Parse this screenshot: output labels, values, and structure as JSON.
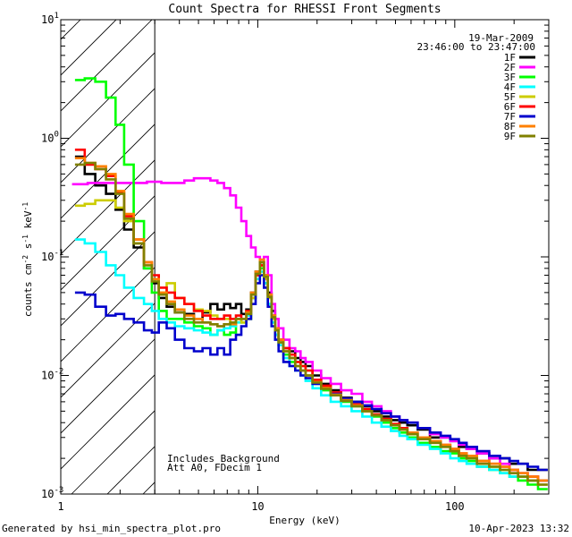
{
  "chart_data": {
    "type": "line",
    "title": "Count Spectra for RHESSI Front Segments",
    "xlabel": "Energy (keV)",
    "ylabel_parts": [
      "counts cm",
      "-2",
      " s",
      "-1",
      " keV",
      "-1"
    ],
    "xscale": "log",
    "yscale": "log",
    "xlim": [
      1,
      300
    ],
    "ylim": [
      0.001,
      10
    ],
    "x_ticks": [
      {
        "value": 1,
        "label": "1"
      },
      {
        "value": 10,
        "label": "10"
      },
      {
        "value": 100,
        "label": "100"
      }
    ],
    "y_ticks": [
      {
        "value": 0.001,
        "mant": "10",
        "exp": "-3"
      },
      {
        "value": 0.01,
        "mant": "10",
        "exp": "-2"
      },
      {
        "value": 0.1,
        "mant": "10",
        "exp": "-1"
      },
      {
        "value": 1,
        "mant": "10",
        "exp": "0"
      },
      {
        "value": 10,
        "mant": "10",
        "exp": "1"
      }
    ],
    "excluded_region": {
      "x_range": [
        1,
        3
      ],
      "style": "hatched"
    },
    "info": {
      "date": "19-Mar-2009",
      "time_range": "23:46:00 to 23:47:00"
    },
    "annotations": [
      "Includes Background",
      "Att A0, FDecim 1"
    ],
    "legend": {
      "placement": "top-right"
    },
    "series": [
      {
        "name": "1F",
        "color": "#000000",
        "x": [
          1.25,
          1.4,
          1.6,
          1.8,
          2.0,
          2.2,
          2.5,
          2.8,
          3.0,
          3.3,
          3.6,
          4.0,
          4.5,
          5.0,
          5.5,
          6.0,
          6.5,
          7.0,
          7.5,
          8.0,
          8.5,
          9.0,
          9.5,
          10.0,
          10.5,
          11.0,
          11.5,
          12.0,
          12.5,
          13,
          14,
          15,
          16,
          17,
          18,
          20,
          22,
          25,
          28,
          32,
          36,
          40,
          45,
          50,
          55,
          60,
          70,
          80,
          90,
          100,
          110,
          120,
          140,
          160,
          180,
          200,
          220,
          250,
          280
        ],
        "y": [
          0.7,
          0.5,
          0.4,
          0.34,
          0.25,
          0.17,
          0.12,
          0.08,
          0.06,
          0.045,
          0.038,
          0.034,
          0.033,
          0.03,
          0.034,
          0.04,
          0.036,
          0.04,
          0.037,
          0.04,
          0.033,
          0.036,
          0.05,
          0.075,
          0.09,
          0.07,
          0.05,
          0.035,
          0.025,
          0.02,
          0.017,
          0.016,
          0.014,
          0.013,
          0.012,
          0.01,
          0.0085,
          0.0075,
          0.0065,
          0.006,
          0.0055,
          0.005,
          0.0045,
          0.0042,
          0.004,
          0.0038,
          0.0035,
          0.003,
          0.003,
          0.0028,
          0.0025,
          0.0024,
          0.0022,
          0.002,
          0.002,
          0.0018,
          0.0018,
          0.0016,
          0.0016
        ]
      },
      {
        "name": "2F",
        "color": "#ff00ff",
        "x": [
          1.25,
          1.5,
          2,
          2.5,
          3,
          3.5,
          4,
          4.5,
          5,
          5.5,
          6,
          6.5,
          7,
          7.5,
          8,
          8.5,
          9,
          9.5,
          10,
          10.5,
          11,
          11.5,
          12,
          12.5,
          13,
          14,
          15,
          16,
          17,
          18,
          20,
          22,
          25,
          28,
          32,
          36,
          40,
          45,
          50,
          55,
          60,
          70,
          80,
          90,
          100,
          110,
          120,
          140,
          160,
          180,
          200,
          220,
          250,
          280
        ],
        "y": [
          0.41,
          0.42,
          0.42,
          0.42,
          0.43,
          0.42,
          0.42,
          0.44,
          0.46,
          0.46,
          0.44,
          0.42,
          0.38,
          0.33,
          0.26,
          0.2,
          0.15,
          0.12,
          0.1,
          0.085,
          0.1,
          0.07,
          0.04,
          0.03,
          0.025,
          0.02,
          0.017,
          0.016,
          0.014,
          0.013,
          0.011,
          0.0095,
          0.0085,
          0.0075,
          0.007,
          0.006,
          0.0055,
          0.005,
          0.0045,
          0.0042,
          0.004,
          0.0036,
          0.0032,
          0.003,
          0.0028,
          0.0026,
          0.0024,
          0.0022,
          0.002,
          0.0018,
          0.0016,
          0.0015,
          0.0014,
          0.0013
        ]
      },
      {
        "name": "3F",
        "color": "#00ff00",
        "x": [
          1.25,
          1.4,
          1.6,
          1.8,
          2.0,
          2.2,
          2.5,
          2.8,
          3.0,
          3.3,
          3.6,
          4.0,
          4.5,
          5.0,
          5.5,
          6.0,
          6.5,
          7.0,
          7.5,
          8.0,
          8.5,
          9.0,
          9.5,
          10.0,
          10.5,
          11.0,
          11.5,
          12.0,
          12.5,
          13,
          14,
          15,
          16,
          17,
          18,
          20,
          22,
          25,
          28,
          32,
          36,
          40,
          45,
          50,
          55,
          60,
          70,
          80,
          90,
          100,
          110,
          120,
          140,
          160,
          180,
          200,
          220,
          250,
          280
        ],
        "y": [
          3.1,
          3.2,
          3.0,
          2.2,
          1.3,
          0.6,
          0.2,
          0.08,
          0.05,
          0.035,
          0.03,
          0.03,
          0.028,
          0.026,
          0.025,
          0.022,
          0.024,
          0.022,
          0.023,
          0.03,
          0.028,
          0.03,
          0.045,
          0.07,
          0.08,
          0.06,
          0.04,
          0.028,
          0.022,
          0.018,
          0.015,
          0.013,
          0.012,
          0.011,
          0.01,
          0.0085,
          0.0075,
          0.0068,
          0.006,
          0.0055,
          0.005,
          0.0045,
          0.004,
          0.0036,
          0.0033,
          0.003,
          0.0027,
          0.0025,
          0.0023,
          0.0022,
          0.002,
          0.0019,
          0.0017,
          0.0016,
          0.0015,
          0.0014,
          0.0013,
          0.0012,
          0.0011
        ]
      },
      {
        "name": "4F",
        "color": "#00ffff",
        "x": [
          1.25,
          1.4,
          1.6,
          1.8,
          2.0,
          2.2,
          2.5,
          2.8,
          3.0,
          3.3,
          3.6,
          4.0,
          4.5,
          5.0,
          5.5,
          6.0,
          6.5,
          7.0,
          7.5,
          8.0,
          8.5,
          9.0,
          9.5,
          10.0,
          10.5,
          11.0,
          11.5,
          12.0,
          12.5,
          13,
          14,
          15,
          16,
          17,
          18,
          20,
          22,
          25,
          28,
          32,
          36,
          40,
          45,
          50,
          55,
          60,
          70,
          80,
          90,
          100,
          110,
          120,
          140,
          160,
          180,
          200,
          220,
          250,
          280
        ],
        "y": [
          0.14,
          0.13,
          0.11,
          0.085,
          0.07,
          0.055,
          0.045,
          0.04,
          0.035,
          0.03,
          0.028,
          0.026,
          0.025,
          0.024,
          0.023,
          0.022,
          0.024,
          0.025,
          0.026,
          0.028,
          0.03,
          0.032,
          0.045,
          0.065,
          0.075,
          0.06,
          0.04,
          0.028,
          0.022,
          0.018,
          0.014,
          0.012,
          0.011,
          0.01,
          0.009,
          0.0078,
          0.0068,
          0.006,
          0.0055,
          0.005,
          0.0045,
          0.004,
          0.0037,
          0.0034,
          0.0031,
          0.0029,
          0.0026,
          0.0024,
          0.0022,
          0.002,
          0.0019,
          0.0018,
          0.0017,
          0.0016,
          0.0015,
          0.0014,
          0.0014,
          0.0013,
          0.0013
        ]
      },
      {
        "name": "5F",
        "color": "#cccc00",
        "x": [
          1.25,
          1.4,
          1.6,
          1.8,
          2.0,
          2.2,
          2.5,
          2.8,
          3.0,
          3.3,
          3.6,
          4.0,
          4.5,
          5.0,
          5.5,
          6.0,
          6.5,
          7.0,
          7.5,
          8.0,
          8.5,
          9.0,
          9.5,
          10.0,
          10.5,
          11.0,
          11.5,
          12.0,
          12.5,
          13,
          14,
          15,
          16,
          17,
          18,
          20,
          22,
          25,
          28,
          32,
          36,
          40,
          45,
          50,
          55,
          60,
          70,
          80,
          90,
          100,
          110,
          120,
          140,
          160,
          180,
          200,
          220,
          250,
          280
        ],
        "y": [
          0.27,
          0.28,
          0.3,
          0.3,
          0.26,
          0.2,
          0.13,
          0.09,
          0.065,
          0.05,
          0.06,
          0.045,
          0.04,
          0.036,
          0.035,
          0.032,
          0.03,
          0.03,
          0.028,
          0.03,
          0.028,
          0.03,
          0.045,
          0.07,
          0.085,
          0.065,
          0.045,
          0.03,
          0.024,
          0.019,
          0.016,
          0.014,
          0.013,
          0.012,
          0.011,
          0.009,
          0.008,
          0.007,
          0.0062,
          0.0056,
          0.005,
          0.0046,
          0.0042,
          0.0038,
          0.0035,
          0.0032,
          0.0029,
          0.0027,
          0.0025,
          0.0023,
          0.0021,
          0.002,
          0.0018,
          0.0017,
          0.0016,
          0.0015,
          0.0014,
          0.0013,
          0.0012
        ]
      },
      {
        "name": "6F",
        "color": "#ff0000",
        "x": [
          1.25,
          1.4,
          1.6,
          1.8,
          2.0,
          2.2,
          2.5,
          2.8,
          3.0,
          3.3,
          3.6,
          4.0,
          4.5,
          5.0,
          5.5,
          6.0,
          6.5,
          7.0,
          7.5,
          8.0,
          8.5,
          9.0,
          9.5,
          10.0,
          10.5,
          11.0,
          11.5,
          12.0,
          12.5,
          13,
          14,
          15,
          16,
          17,
          18,
          20,
          22,
          25,
          28,
          32,
          36,
          40,
          45,
          50,
          55,
          60,
          70,
          80,
          90,
          100,
          110,
          120,
          140,
          160,
          180,
          200,
          220,
          250,
          280
        ],
        "y": [
          0.8,
          0.6,
          0.55,
          0.48,
          0.35,
          0.22,
          0.14,
          0.09,
          0.07,
          0.055,
          0.05,
          0.045,
          0.04,
          0.035,
          0.032,
          0.03,
          0.03,
          0.032,
          0.03,
          0.032,
          0.03,
          0.035,
          0.048,
          0.07,
          0.085,
          0.068,
          0.048,
          0.032,
          0.025,
          0.02,
          0.017,
          0.015,
          0.013,
          0.012,
          0.011,
          0.0092,
          0.0082,
          0.0072,
          0.0064,
          0.0057,
          0.0052,
          0.0047,
          0.0043,
          0.0039,
          0.0036,
          0.0033,
          0.003,
          0.0028,
          0.0026,
          0.0024,
          0.0022,
          0.0021,
          0.0019,
          0.0018,
          0.0017,
          0.0016,
          0.0015,
          0.0014,
          0.0013
        ]
      },
      {
        "name": "7F",
        "color": "#0000cc",
        "x": [
          1.25,
          1.4,
          1.6,
          1.8,
          2.0,
          2.2,
          2.5,
          2.8,
          3.0,
          3.3,
          3.6,
          4.0,
          4.5,
          5.0,
          5.5,
          6.0,
          6.5,
          7.0,
          7.5,
          8.0,
          8.5,
          9.0,
          9.5,
          10.0,
          10.5,
          11.0,
          11.5,
          12.0,
          12.5,
          13,
          14,
          15,
          16,
          17,
          18,
          20,
          22,
          25,
          28,
          32,
          36,
          40,
          45,
          50,
          55,
          60,
          70,
          80,
          90,
          100,
          110,
          120,
          140,
          160,
          180,
          200,
          220,
          250,
          280
        ],
        "y": [
          0.05,
          0.048,
          0.038,
          0.032,
          0.033,
          0.03,
          0.028,
          0.024,
          0.023,
          0.028,
          0.025,
          0.02,
          0.017,
          0.016,
          0.017,
          0.015,
          0.017,
          0.015,
          0.02,
          0.022,
          0.026,
          0.03,
          0.04,
          0.06,
          0.07,
          0.055,
          0.038,
          0.026,
          0.02,
          0.016,
          0.013,
          0.012,
          0.011,
          0.01,
          0.0095,
          0.0085,
          0.0078,
          0.007,
          0.0064,
          0.006,
          0.0056,
          0.0052,
          0.0048,
          0.0045,
          0.0042,
          0.004,
          0.0036,
          0.0033,
          0.0031,
          0.0029,
          0.0027,
          0.0025,
          0.0023,
          0.0021,
          0.002,
          0.0019,
          0.0018,
          0.0017,
          0.0016
        ]
      },
      {
        "name": "8F",
        "color": "#ff8000",
        "x": [
          1.25,
          1.4,
          1.6,
          1.8,
          2.0,
          2.2,
          2.5,
          2.8,
          3.0,
          3.3,
          3.6,
          4.0,
          4.5,
          5.0,
          5.5,
          6.0,
          6.5,
          7.0,
          7.5,
          8.0,
          8.5,
          9.0,
          9.5,
          10.0,
          10.5,
          11.0,
          11.5,
          12.0,
          12.5,
          13,
          14,
          15,
          16,
          17,
          18,
          20,
          22,
          25,
          28,
          32,
          36,
          40,
          45,
          50,
          55,
          60,
          70,
          80,
          90,
          100,
          110,
          120,
          140,
          160,
          180,
          200,
          220,
          250,
          280
        ],
        "y": [
          0.68,
          0.62,
          0.58,
          0.5,
          0.36,
          0.23,
          0.14,
          0.09,
          0.065,
          0.05,
          0.042,
          0.036,
          0.032,
          0.03,
          0.028,
          0.027,
          0.026,
          0.027,
          0.027,
          0.03,
          0.03,
          0.034,
          0.05,
          0.075,
          0.095,
          0.07,
          0.048,
          0.032,
          0.025,
          0.02,
          0.016,
          0.014,
          0.012,
          0.011,
          0.01,
          0.0088,
          0.0078,
          0.0069,
          0.0062,
          0.0056,
          0.005,
          0.0046,
          0.0042,
          0.0038,
          0.0035,
          0.0033,
          0.003,
          0.0028,
          0.0026,
          0.0024,
          0.0022,
          0.0021,
          0.0019,
          0.0018,
          0.0017,
          0.0016,
          0.0015,
          0.0014,
          0.0013
        ]
      },
      {
        "name": "9F",
        "color": "#808000",
        "x": [
          1.25,
          1.4,
          1.6,
          1.8,
          2.0,
          2.2,
          2.5,
          2.8,
          3.0,
          3.3,
          3.6,
          4.0,
          4.5,
          5.0,
          5.5,
          6.0,
          6.5,
          7.0,
          7.5,
          8.0,
          8.5,
          9.0,
          9.5,
          10.0,
          10.5,
          11.0,
          11.5,
          12.0,
          12.5,
          13,
          14,
          15,
          16,
          17,
          18,
          20,
          22,
          25,
          28,
          32,
          36,
          40,
          45,
          50,
          55,
          60,
          70,
          80,
          90,
          100,
          110,
          120,
          140,
          160,
          180,
          200,
          220,
          250,
          280
        ],
        "y": [
          0.6,
          0.62,
          0.55,
          0.45,
          0.34,
          0.21,
          0.13,
          0.085,
          0.062,
          0.048,
          0.04,
          0.034,
          0.03,
          0.028,
          0.028,
          0.027,
          0.026,
          0.027,
          0.028,
          0.03,
          0.03,
          0.033,
          0.048,
          0.072,
          0.09,
          0.068,
          0.046,
          0.031,
          0.024,
          0.019,
          0.016,
          0.014,
          0.012,
          0.011,
          0.01,
          0.0087,
          0.0077,
          0.0068,
          0.0061,
          0.0055,
          0.005,
          0.0046,
          0.0042,
          0.0038,
          0.0035,
          0.0032,
          0.0029,
          0.0027,
          0.0025,
          0.0023,
          0.0021,
          0.002,
          0.0018,
          0.0017,
          0.0016,
          0.0015,
          0.0014,
          0.0013,
          0.0012
        ]
      }
    ]
  },
  "footer": {
    "generated": "Generated by hsi_min_spectra_plot.pro",
    "date": "10-Apr-2023 13:32"
  }
}
